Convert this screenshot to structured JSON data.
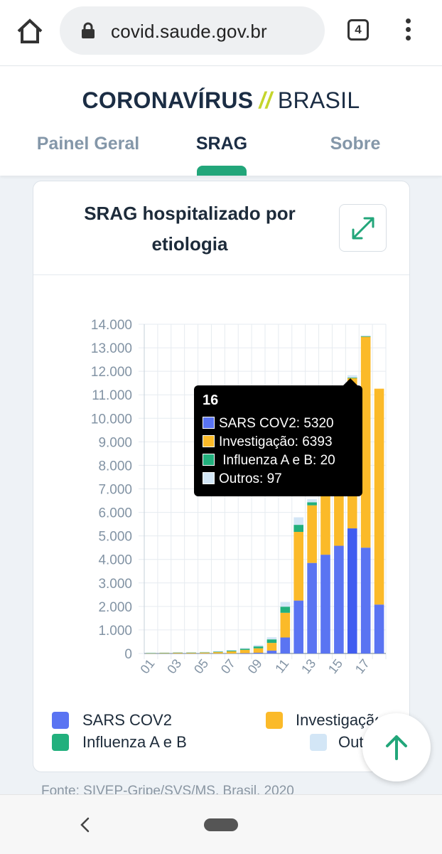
{
  "browser": {
    "url": "covid.saude.gov.br",
    "tab_count": "4"
  },
  "header": {
    "logo_main": "CORONAVÍRUS",
    "logo_slash": "//",
    "logo_sub": "BRASIL",
    "nav": [
      {
        "label": "Painel Geral",
        "active": false
      },
      {
        "label": "SRAG",
        "active": true
      },
      {
        "label": "Sobre",
        "active": false
      }
    ]
  },
  "card": {
    "title": "SRAG hospitalizado por etiologia"
  },
  "colors": {
    "sars": "#5a74f2",
    "investigacao": "#fbba29",
    "influenza": "#22b07d",
    "outros": "#d3e6f6",
    "accent": "#22a67a"
  },
  "chart_data": {
    "type": "bar",
    "stacked": true,
    "x": [
      "01",
      "02",
      "03",
      "04",
      "05",
      "06",
      "07",
      "08",
      "09",
      "10",
      "11",
      "12",
      "13",
      "14",
      "15",
      "16",
      "17",
      "18"
    ],
    "x_tick_labels": [
      "01",
      "03",
      "05",
      "07",
      "09",
      "11",
      "13",
      "15",
      "17"
    ],
    "y_tick_labels": [
      "0",
      "1.000",
      "2.000",
      "3.000",
      "4.000",
      "5.000",
      "6.000",
      "7.000",
      "8.000",
      "9.000",
      "10.000",
      "11.000",
      "12.000",
      "13.000",
      "14.000"
    ],
    "ylim": [
      0,
      14000
    ],
    "grid": true,
    "legend_position": "bottom",
    "series": [
      {
        "name": "SARS COV2",
        "color": "#5a74f2",
        "values": [
          0,
          0,
          0,
          0,
          0,
          0,
          0,
          10,
          30,
          120,
          680,
          2250,
          3850,
          4200,
          4580,
          5320,
          4500,
          2080
        ]
      },
      {
        "name": "Investigação",
        "color": "#fbba29",
        "values": [
          20,
          30,
          40,
          40,
          50,
          60,
          90,
          140,
          190,
          330,
          1050,
          2920,
          2450,
          2700,
          2230,
          6393,
          8980,
          9180
        ]
      },
      {
        "name": "Influenza A e B",
        "color": "#22b07d",
        "values": [
          10,
          10,
          10,
          10,
          10,
          20,
          30,
          50,
          80,
          150,
          260,
          300,
          130,
          90,
          60,
          20,
          10,
          0
        ]
      },
      {
        "name": "Outros",
        "color": "#d3e6f6",
        "values": [
          10,
          10,
          10,
          10,
          10,
          20,
          30,
          40,
          60,
          90,
          200,
          320,
          130,
          110,
          90,
          97,
          40,
          0
        ]
      }
    ],
    "tooltip": {
      "title": "16",
      "rows": [
        {
          "text": "SARS COV2: 5320",
          "color": "#5a74f2"
        },
        {
          "text": "Investigação: 6393",
          "color": "#fbba29"
        },
        {
          "text": " Influenza A e B: 20",
          "color": "#22b07d"
        },
        {
          "text": "Outros: 97",
          "color": "#d3e6f6"
        }
      ]
    },
    "legend": [
      {
        "label": "SARS COV2",
        "color": "#5a74f2"
      },
      {
        "label": "Investigação",
        "color": "#fbba29"
      },
      {
        "label": "Influenza A e B",
        "color": "#22b07d"
      },
      {
        "label": "Outros",
        "color": "#d3e6f6"
      }
    ]
  },
  "source_text": "Fonte: SIVEP-Gripe/SVS/MS, Brasil, 2020"
}
